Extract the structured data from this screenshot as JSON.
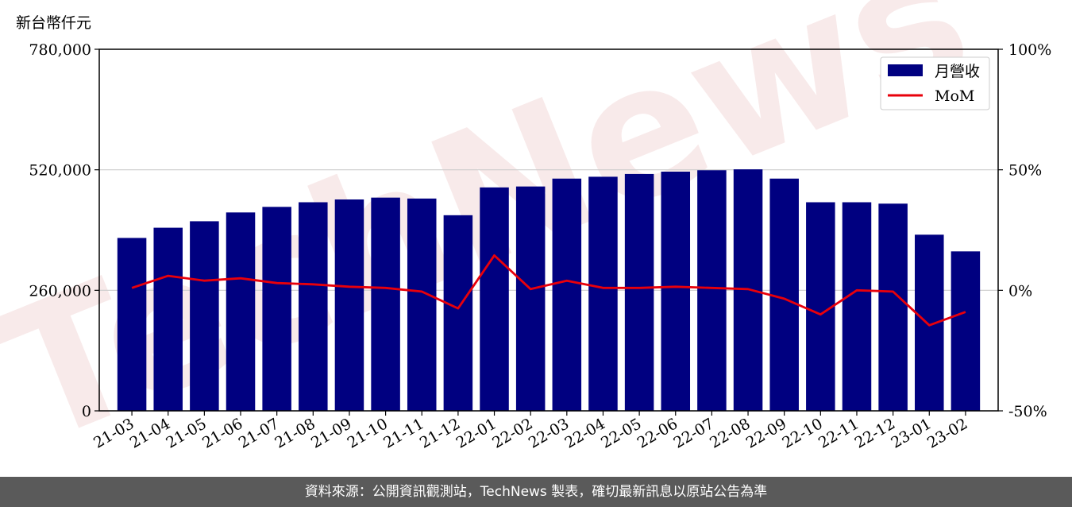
{
  "y_unit_label": "新台幣仟元",
  "footer": "資料來源：公開資訊觀測站，TechNews 製表，確切最新訊息以原站公告為準",
  "watermark": "TechNews",
  "colors": {
    "bar": "#000080",
    "line": "#e8000b",
    "grid": "#cccccc",
    "footer_bg": "#5a5a5a",
    "watermark": "#f3d9d9"
  },
  "chart_data": {
    "type": "bar",
    "categories": [
      "21-03",
      "21-04",
      "21-05",
      "21-06",
      "21-07",
      "21-08",
      "21-09",
      "21-10",
      "21-11",
      "21-12",
      "22-01",
      "22-02",
      "22-03",
      "22-04",
      "22-05",
      "22-06",
      "22-07",
      "22-08",
      "22-09",
      "22-10",
      "22-11",
      "22-12",
      "23-01",
      "23-02"
    ],
    "series": [
      {
        "name": "月營收",
        "axis": "left",
        "kind": "bar",
        "values": [
          373000,
          395000,
          409000,
          428000,
          440000,
          450000,
          456000,
          460000,
          458000,
          422000,
          482000,
          484000,
          501000,
          505000,
          511000,
          516000,
          519000,
          521000,
          501000,
          450000,
          450000,
          447000,
          380000,
          344000
        ]
      },
      {
        "name": "MoM",
        "axis": "right",
        "kind": "line",
        "unit": "%",
        "values": [
          1.0,
          6.0,
          4.0,
          5.0,
          3.0,
          2.5,
          1.5,
          1.0,
          -0.5,
          -7.5,
          14.5,
          0.5,
          4.0,
          1.0,
          1.0,
          1.5,
          1.0,
          0.5,
          -3.5,
          -10.0,
          0.0,
          -0.5,
          -14.5,
          -9.0
        ]
      }
    ],
    "y_left": {
      "ylim": [
        0,
        780000
      ],
      "ticks": [
        "0",
        "260,000",
        "520,000",
        "780,000"
      ]
    },
    "y_right": {
      "ylim": [
        -50,
        100
      ],
      "ticks": [
        "-50%",
        "0%",
        "50%",
        "100%"
      ]
    },
    "grid": true,
    "legend": {
      "placement": "top-right",
      "entries": [
        "月營收",
        "MoM"
      ]
    }
  }
}
